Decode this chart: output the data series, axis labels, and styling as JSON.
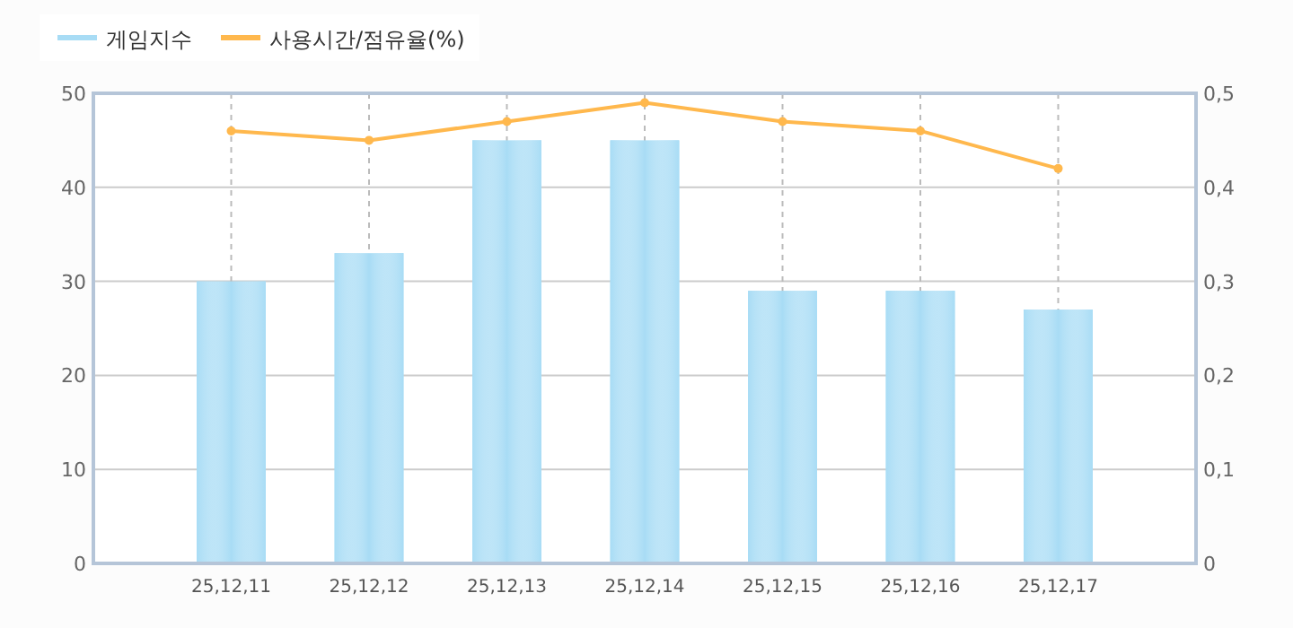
{
  "chart_data": {
    "type": "bar",
    "categories": [
      "25,12,11",
      "25,12,12",
      "25,12,13",
      "25,12,14",
      "25,12,15",
      "25,12,16",
      "25,12,17"
    ],
    "series": [
      {
        "name": "게임지수",
        "color": "#a8dcf5",
        "values": [
          30,
          33,
          45,
          45,
          29,
          29,
          27
        ]
      },
      {
        "name": "사용시간/점유율(%)",
        "type": "line",
        "axis": "y2",
        "color": "#ffb84d",
        "values": [
          0.46,
          0.45,
          0.47,
          0.49,
          0.47,
          0.46,
          0.42
        ]
      }
    ],
    "ylim": [
      0,
      50
    ],
    "yticks": [
      0,
      10,
      20,
      30,
      40,
      50
    ],
    "y2lim": [
      0,
      0.5
    ],
    "y2ticks": [
      {
        "value": 0,
        "label": "0"
      },
      {
        "value": 0.1,
        "label": "0,1"
      },
      {
        "value": 0.2,
        "label": "0,2"
      },
      {
        "value": 0.3,
        "label": "0,3"
      },
      {
        "value": 0.4,
        "label": "0,4"
      },
      {
        "value": 0.5,
        "label": "0,5"
      }
    ],
    "grid": true,
    "legend": "top left",
    "marker": "circle"
  }
}
